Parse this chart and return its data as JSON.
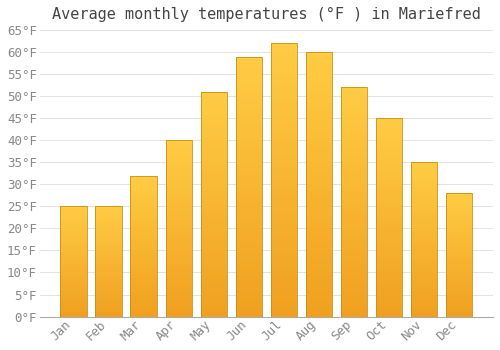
{
  "title": "Average monthly temperatures (°F ) in Mariefred",
  "months": [
    "Jan",
    "Feb",
    "Mar",
    "Apr",
    "May",
    "Jun",
    "Jul",
    "Aug",
    "Sep",
    "Oct",
    "Nov",
    "Dec"
  ],
  "values": [
    25,
    25,
    32,
    40,
    51,
    59,
    62,
    60,
    52,
    45,
    35,
    28
  ],
  "bar_color_top": "#FFCC44",
  "bar_color_bottom": "#F0A020",
  "bar_edge_color": "#C89010",
  "background_color": "#FFFFFF",
  "grid_color": "#DDDDDD",
  "text_color": "#888888",
  "title_color": "#444444",
  "ylim": [
    0,
    65
  ],
  "yticks": [
    0,
    5,
    10,
    15,
    20,
    25,
    30,
    35,
    40,
    45,
    50,
    55,
    60,
    65
  ],
  "title_fontsize": 11,
  "tick_fontsize": 9,
  "bar_width": 0.75
}
